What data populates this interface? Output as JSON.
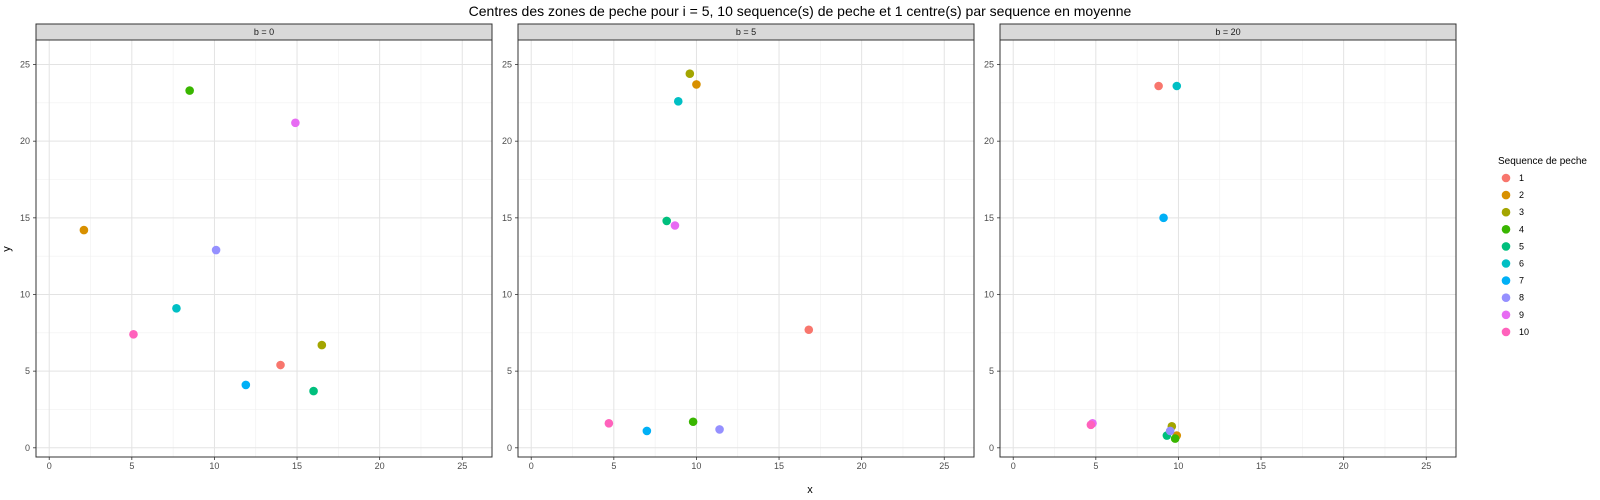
{
  "chart_data": {
    "type": "scatter",
    "title": "Centres des zones de peche pour i = 5, 10 sequence(s) de peche et 1 centre(s) par sequence en moyenne",
    "xlabel": "x",
    "ylabel": "y",
    "xlim": [
      -0.8,
      26.8
    ],
    "ylim": [
      -0.6,
      26.6
    ],
    "x_ticks": [
      0,
      5,
      10,
      15,
      20,
      25
    ],
    "y_ticks": [
      0,
      5,
      10,
      15,
      20,
      25
    ],
    "grid": true,
    "legend": {
      "title": "Sequence de peche",
      "position": "right",
      "entries": [
        {
          "label": "1",
          "color": "#F8766D"
        },
        {
          "label": "2",
          "color": "#D89000"
        },
        {
          "label": "3",
          "color": "#A3A500"
        },
        {
          "label": "4",
          "color": "#39B600"
        },
        {
          "label": "5",
          "color": "#00BF7D"
        },
        {
          "label": "6",
          "color": "#00BFC4"
        },
        {
          "label": "7",
          "color": "#00B0F6"
        },
        {
          "label": "8",
          "color": "#9590FF"
        },
        {
          "label": "9",
          "color": "#E76BF3"
        },
        {
          "label": "10",
          "color": "#FF62BC"
        }
      ]
    },
    "panels": [
      {
        "label": "b = 0",
        "points": [
          {
            "seq": "1",
            "x": 14.0,
            "y": 5.4
          },
          {
            "seq": "2",
            "x": 2.1,
            "y": 14.2
          },
          {
            "seq": "3",
            "x": 16.5,
            "y": 6.7
          },
          {
            "seq": "4",
            "x": 8.5,
            "y": 23.3
          },
          {
            "seq": "5",
            "x": 16.0,
            "y": 3.7
          },
          {
            "seq": "6",
            "x": 7.7,
            "y": 9.1
          },
          {
            "seq": "7",
            "x": 11.9,
            "y": 4.1
          },
          {
            "seq": "8",
            "x": 10.1,
            "y": 12.9
          },
          {
            "seq": "9",
            "x": 14.9,
            "y": 21.2
          },
          {
            "seq": "10",
            "x": 5.1,
            "y": 7.4
          }
        ]
      },
      {
        "label": "b = 5",
        "points": [
          {
            "seq": "1",
            "x": 16.8,
            "y": 7.7
          },
          {
            "seq": "2",
            "x": 10.0,
            "y": 23.7
          },
          {
            "seq": "3",
            "x": 9.6,
            "y": 24.4
          },
          {
            "seq": "4",
            "x": 9.8,
            "y": 1.7
          },
          {
            "seq": "5",
            "x": 8.2,
            "y": 14.8
          },
          {
            "seq": "6",
            "x": 8.9,
            "y": 22.6
          },
          {
            "seq": "7",
            "x": 7.0,
            "y": 1.1
          },
          {
            "seq": "8",
            "x": 11.4,
            "y": 1.2
          },
          {
            "seq": "9",
            "x": 8.7,
            "y": 14.5
          },
          {
            "seq": "10",
            "x": 4.7,
            "y": 1.6
          }
        ]
      },
      {
        "label": "b = 20",
        "points": [
          {
            "seq": "1",
            "x": 8.8,
            "y": 23.6
          },
          {
            "seq": "2",
            "x": 9.9,
            "y": 0.8
          },
          {
            "seq": "3",
            "x": 9.6,
            "y": 1.4
          },
          {
            "seq": "4",
            "x": 9.8,
            "y": 0.6
          },
          {
            "seq": "5",
            "x": 9.3,
            "y": 0.8
          },
          {
            "seq": "6",
            "x": 9.9,
            "y": 23.6
          },
          {
            "seq": "7",
            "x": 9.1,
            "y": 15.0
          },
          {
            "seq": "8",
            "x": 9.5,
            "y": 1.1
          },
          {
            "seq": "9",
            "x": 4.8,
            "y": 1.6
          },
          {
            "seq": "10",
            "x": 4.7,
            "y": 1.5
          }
        ]
      }
    ]
  }
}
